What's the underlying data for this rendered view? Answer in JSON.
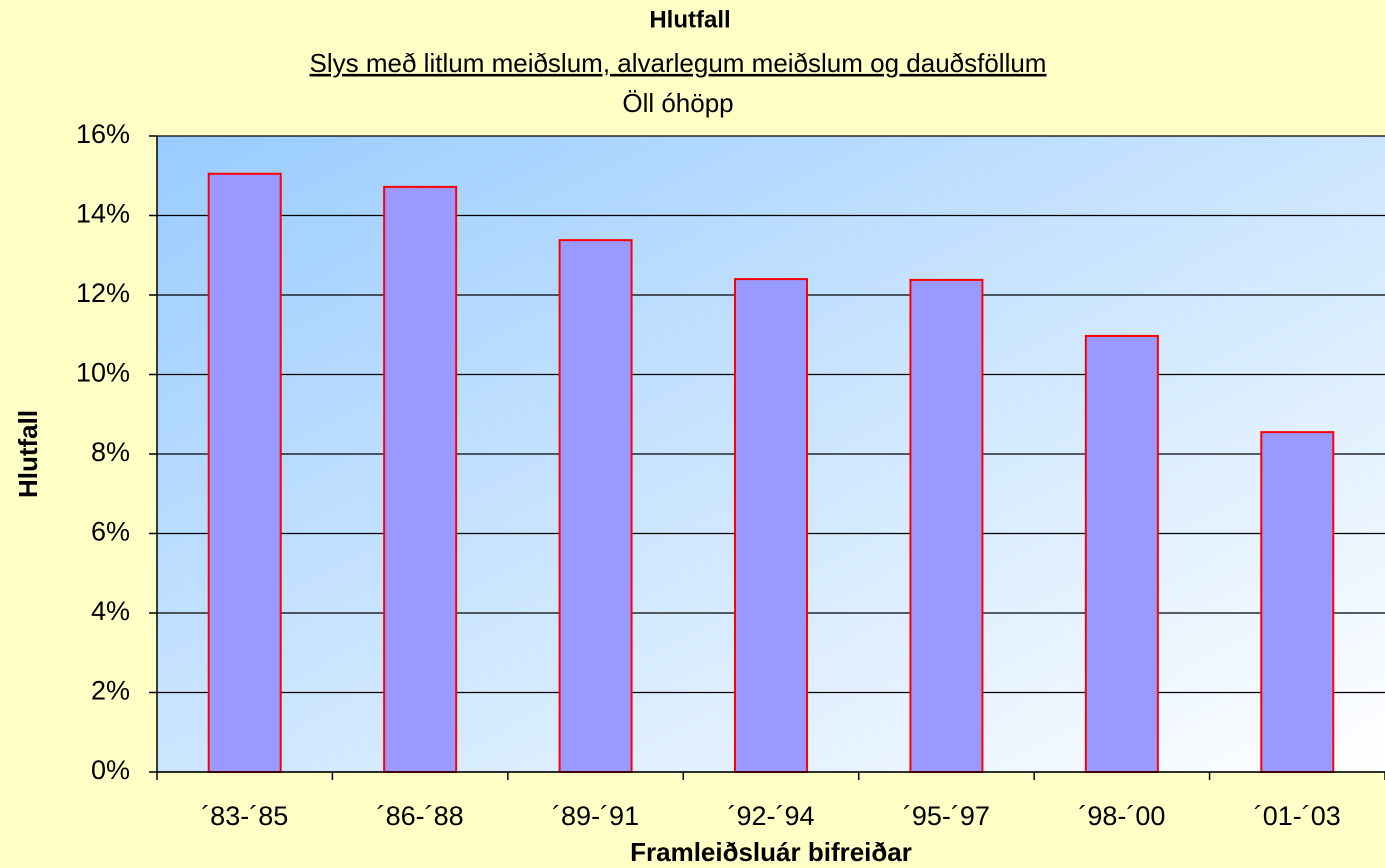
{
  "chart_data": {
    "type": "bar",
    "title": "Hlutfall",
    "subtitle": [
      "Slys með litlum meiðslum, alvarlegum meiðslum og dauðsföllum",
      "Öll óhöpp"
    ],
    "x_label": "Framleiðsluár bifreiðar",
    "y_label": "Hlutfall",
    "categories": [
      "´83-´85",
      "´86-´88",
      "´89-´91",
      "´92-´94",
      "´95-´97",
      "´98-´00",
      "´01-´03"
    ],
    "values": [
      15.05,
      14.72,
      13.38,
      12.4,
      12.38,
      10.97,
      8.55
    ],
    "color": "#9999ff",
    "edge_color": "#ff0000",
    "ylim": [
      0,
      16
    ],
    "yticks": [
      {
        "value": 0,
        "label": "0%"
      },
      {
        "value": 2,
        "label": "2%"
      },
      {
        "value": 4,
        "label": "4%"
      },
      {
        "value": 6,
        "label": "6%"
      },
      {
        "value": 8,
        "label": "8%"
      },
      {
        "value": 10,
        "label": "10%"
      },
      {
        "value": 12,
        "label": "12%"
      },
      {
        "value": 14,
        "label": "14%"
      },
      {
        "value": 16,
        "label": "16%"
      }
    ],
    "grid": true
  }
}
